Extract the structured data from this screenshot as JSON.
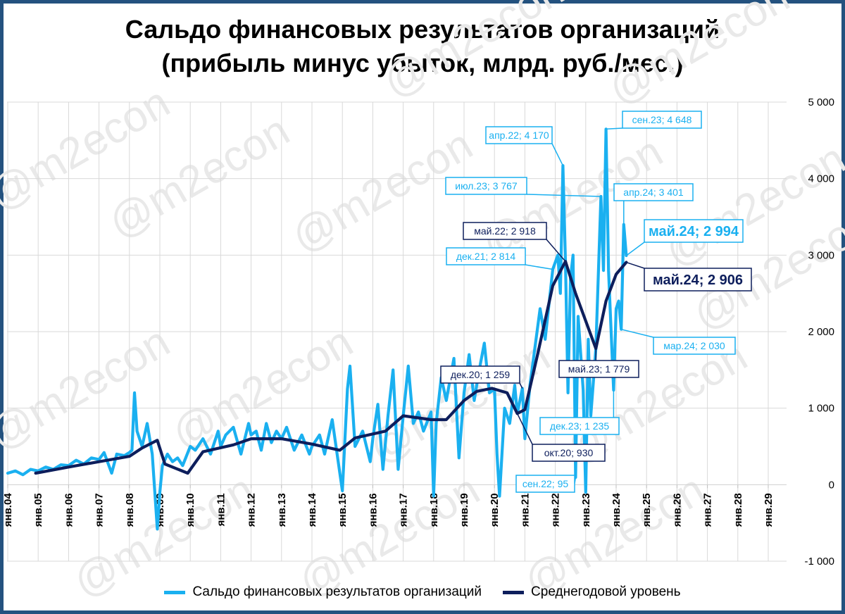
{
  "title": {
    "line1": "Сальдо финансовых результатов организаций",
    "line2": "(прибыль минус убыток, млрд. руб./мес.)"
  },
  "watermark": "@m2econ",
  "colors": {
    "series_monthly": "#1ab0f0",
    "series_avg": "#0d1e5c",
    "grid": "#d9d9d9",
    "frame": "#24527f"
  },
  "chart_data": {
    "type": "line",
    "ylim": [
      -1000,
      5000
    ],
    "y_ticks": [
      5000,
      4000,
      3000,
      2000,
      1000,
      0,
      -1000
    ],
    "y_tick_labels": [
      "5 000",
      "4 000",
      "3 000",
      "2 000",
      "1 000",
      "0",
      "-1 000"
    ],
    "x_tick_labels": [
      "янв.04",
      "янв.05",
      "янв.06",
      "янв.07",
      "янв.08",
      "янв.09",
      "янв.10",
      "янв.11",
      "янв.12",
      "янв.13",
      "янв.14",
      "янв.15",
      "янв.16",
      "янв.17",
      "янв.18",
      "янв.19",
      "янв.20",
      "янв.21",
      "янв.22",
      "янв.23",
      "янв.24",
      "янв.25",
      "янв.26",
      "янв.27",
      "янв.28",
      "янв.29"
    ],
    "grid": true,
    "legend_position": "bottom",
    "series": [
      {
        "name": "Сальдо финансовых результатов организаций",
        "points": [
          [
            "2004-01",
            150
          ],
          [
            "2004-04",
            180
          ],
          [
            "2004-07",
            130
          ],
          [
            "2004-10",
            200
          ],
          [
            "2005-01",
            180
          ],
          [
            "2005-04",
            230
          ],
          [
            "2005-07",
            200
          ],
          [
            "2005-10",
            260
          ],
          [
            "2006-01",
            250
          ],
          [
            "2006-04",
            320
          ],
          [
            "2006-07",
            270
          ],
          [
            "2006-10",
            350
          ],
          [
            "2007-01",
            330
          ],
          [
            "2007-03",
            420
          ],
          [
            "2007-06",
            150
          ],
          [
            "2007-08",
            400
          ],
          [
            "2007-11",
            380
          ],
          [
            "2008-01",
            420
          ],
          [
            "2008-02",
            450
          ],
          [
            "2008-03",
            1200
          ],
          [
            "2008-04",
            700
          ],
          [
            "2008-06",
            500
          ],
          [
            "2008-08",
            800
          ],
          [
            "2008-10",
            400
          ],
          [
            "2008-12",
            -580
          ],
          [
            "2009-01",
            -100
          ],
          [
            "2009-02",
            250
          ],
          [
            "2009-04",
            400
          ],
          [
            "2009-06",
            300
          ],
          [
            "2009-08",
            350
          ],
          [
            "2009-10",
            250
          ],
          [
            "2010-01",
            500
          ],
          [
            "2010-03",
            450
          ],
          [
            "2010-06",
            600
          ],
          [
            "2010-09",
            400
          ],
          [
            "2010-12",
            700
          ],
          [
            "2011-01",
            500
          ],
          [
            "2011-03",
            650
          ],
          [
            "2011-06",
            750
          ],
          [
            "2011-09",
            400
          ],
          [
            "2011-12",
            800
          ],
          [
            "2012-01",
            650
          ],
          [
            "2012-03",
            700
          ],
          [
            "2012-05",
            450
          ],
          [
            "2012-07",
            800
          ],
          [
            "2012-09",
            550
          ],
          [
            "2012-11",
            700
          ],
          [
            "2013-01",
            600
          ],
          [
            "2013-03",
            750
          ],
          [
            "2013-06",
            450
          ],
          [
            "2013-09",
            650
          ],
          [
            "2013-12",
            400
          ],
          [
            "2014-01",
            500
          ],
          [
            "2014-04",
            650
          ],
          [
            "2014-06",
            400
          ],
          [
            "2014-09",
            850
          ],
          [
            "2014-12",
            150
          ],
          [
            "2015-01",
            -80
          ],
          [
            "2015-03",
            1250
          ],
          [
            "2015-04",
            1550
          ],
          [
            "2015-06",
            500
          ],
          [
            "2015-09",
            700
          ],
          [
            "2015-12",
            300
          ],
          [
            "2016-01",
            600
          ],
          [
            "2016-03",
            1050
          ],
          [
            "2016-05",
            200
          ],
          [
            "2016-07",
            900
          ],
          [
            "2016-09",
            1500
          ],
          [
            "2016-11",
            200
          ],
          [
            "2017-01",
            900
          ],
          [
            "2017-03",
            1550
          ],
          [
            "2017-05",
            800
          ],
          [
            "2017-07",
            950
          ],
          [
            "2017-09",
            700
          ],
          [
            "2017-12",
            950
          ],
          [
            "2018-01",
            -150
          ],
          [
            "2018-02",
            800
          ],
          [
            "2018-04",
            1400
          ],
          [
            "2018-06",
            1100
          ],
          [
            "2018-09",
            1650
          ],
          [
            "2018-11",
            350
          ],
          [
            "2019-01",
            1200
          ],
          [
            "2019-03",
            1700
          ],
          [
            "2019-05",
            1100
          ],
          [
            "2019-07",
            1500
          ],
          [
            "2019-09",
            1850
          ],
          [
            "2019-11",
            1200
          ],
          [
            "2020-01",
            1250
          ],
          [
            "2020-02",
            400
          ],
          [
            "2020-03",
            -150
          ],
          [
            "2020-05",
            1000
          ],
          [
            "2020-07",
            800
          ],
          [
            "2020-09",
            1300
          ],
          [
            "2020-10",
            930
          ],
          [
            "2020-12",
            1259
          ],
          [
            "2021-01",
            600
          ],
          [
            "2021-03",
            1300
          ],
          [
            "2021-05",
            1800
          ],
          [
            "2021-07",
            2300
          ],
          [
            "2021-09",
            1900
          ],
          [
            "2021-12",
            2814
          ],
          [
            "2022-02",
            3000
          ],
          [
            "2022-03",
            2500
          ],
          [
            "2022-04",
            4170
          ],
          [
            "2022-05",
            2918
          ],
          [
            "2022-06",
            1200
          ],
          [
            "2022-07",
            2700
          ],
          [
            "2022-08",
            3000
          ],
          [
            "2022-09",
            95
          ],
          [
            "2022-10",
            2200
          ],
          [
            "2022-12",
            1235
          ],
          [
            "2023-01",
            -100
          ],
          [
            "2023-02",
            1900
          ],
          [
            "2023-03",
            900
          ],
          [
            "2023-05",
            1779
          ],
          [
            "2023-07",
            3767
          ],
          [
            "2023-08",
            2800
          ],
          [
            "2023-09",
            4648
          ],
          [
            "2023-10",
            2800
          ],
          [
            "2023-12",
            1235
          ],
          [
            "2024-01",
            2300
          ],
          [
            "2024-02",
            2400
          ],
          [
            "2024-03",
            2030
          ],
          [
            "2024-04",
            3401
          ],
          [
            "2024-05",
            2994
          ]
        ]
      },
      {
        "name": "Среднегодовой уровень",
        "points": [
          [
            "2004-12",
            150
          ],
          [
            "2006-01",
            230
          ],
          [
            "2007-01",
            300
          ],
          [
            "2008-01",
            370
          ],
          [
            "2008-06",
            480
          ],
          [
            "2008-12",
            580
          ],
          [
            "2009-03",
            270
          ],
          [
            "2009-12",
            150
          ],
          [
            "2010-06",
            430
          ],
          [
            "2011-06",
            520
          ],
          [
            "2012-01",
            600
          ],
          [
            "2013-01",
            600
          ],
          [
            "2014-01",
            530
          ],
          [
            "2014-12",
            450
          ],
          [
            "2015-06",
            610
          ],
          [
            "2016-06",
            700
          ],
          [
            "2017-01",
            900
          ],
          [
            "2017-12",
            850
          ],
          [
            "2018-06",
            850
          ],
          [
            "2019-01",
            1100
          ],
          [
            "2019-06",
            1220
          ],
          [
            "2019-12",
            1259
          ],
          [
            "2020-06",
            1200
          ],
          [
            "2020-10",
            930
          ],
          [
            "2021-01",
            980
          ],
          [
            "2021-06",
            1700
          ],
          [
            "2021-12",
            2600
          ],
          [
            "2022-05",
            2918
          ],
          [
            "2022-09",
            2500
          ],
          [
            "2023-05",
            1779
          ],
          [
            "2023-09",
            2400
          ],
          [
            "2024-01",
            2750
          ],
          [
            "2024-05",
            2906
          ]
        ]
      }
    ],
    "annotations": [
      {
        "text": "апр.22; 4 170",
        "series": 0,
        "date": "2022-04",
        "value": 4170
      },
      {
        "text": "сен.23; 4 648",
        "series": 0,
        "date": "2023-09",
        "value": 4648
      },
      {
        "text": "июл.23; 3 767",
        "series": 0,
        "date": "2023-07",
        "value": 3767
      },
      {
        "text": "апр.24; 3 401",
        "series": 0,
        "date": "2024-04",
        "value": 3401
      },
      {
        "text": "май.22; 2 918",
        "series": 1,
        "date": "2022-05",
        "value": 2918
      },
      {
        "text": "май.24; 2 994",
        "series": 0,
        "date": "2024-05",
        "value": 2994
      },
      {
        "text": "дек.21; 2 814",
        "series": 0,
        "date": "2021-12",
        "value": 2814
      },
      {
        "text": "май.24; 2 906",
        "series": 1,
        "date": "2024-05",
        "value": 2906
      },
      {
        "text": "мар.24; 2 030",
        "series": 0,
        "date": "2024-03",
        "value": 2030
      },
      {
        "text": "май.23; 1 779",
        "series": 1,
        "date": "2023-05",
        "value": 1779
      },
      {
        "text": "дек.20; 1 259",
        "series": 1,
        "date": "2020-12",
        "value": 1259
      },
      {
        "text": "дек.23; 1 235",
        "series": 0,
        "date": "2023-12",
        "value": 1235
      },
      {
        "text": "окт.20; 930",
        "series": 1,
        "date": "2020-10",
        "value": 930
      },
      {
        "text": "сен.22; 95",
        "series": 0,
        "date": "2022-09",
        "value": 95
      }
    ]
  }
}
